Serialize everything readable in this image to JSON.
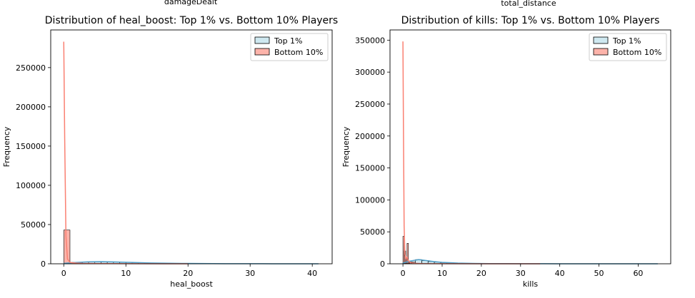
{
  "top_labels": [
    "damageDealt",
    "total_distance"
  ],
  "chart_data": [
    {
      "type": "histogram",
      "title": "Distribution of heal_boost: Top 1% vs. Bottom 10% Players",
      "xlabel": "heal_boost",
      "ylabel": "Frequency",
      "xlim": [
        -2.1,
        43.2
      ],
      "ylim": [
        0,
        298000
      ],
      "xticks": [
        0,
        10,
        20,
        30,
        40
      ],
      "yticks": [
        0,
        50000,
        100000,
        150000,
        200000,
        250000
      ],
      "grid": false,
      "legend_placement": "top-right",
      "legend": [
        "Top 1%",
        "Bottom 10%"
      ],
      "series": [
        {
          "name": "Top 1%",
          "color": "#add8e6",
          "line_color": "#4f9fc9",
          "bin_edges": [
            0,
            1,
            2,
            3,
            4,
            5,
            6,
            7,
            8,
            9,
            10,
            11,
            12,
            13,
            14,
            15,
            16,
            17,
            18,
            19,
            20,
            21,
            22,
            23,
            24,
            25,
            26,
            27,
            28,
            29,
            30,
            31,
            32,
            33,
            34,
            35,
            36,
            37,
            38,
            39,
            40,
            41
          ],
          "counts": [
            700,
            1200,
            1900,
            2300,
            2500,
            2600,
            2500,
            2300,
            2100,
            1900,
            1700,
            1500,
            1300,
            1100,
            950,
            800,
            700,
            600,
            500,
            420,
            360,
            300,
            250,
            210,
            170,
            140,
            120,
            100,
            80,
            70,
            60,
            50,
            40,
            35,
            30,
            25,
            20,
            15,
            12,
            10,
            8
          ],
          "kde_x": [
            0,
            2,
            4,
            6,
            8,
            10,
            12,
            14,
            16,
            18,
            20,
            22,
            24,
            26,
            28,
            30,
            32,
            34,
            36,
            38,
            40,
            41
          ],
          "kde_y": [
            600,
            1700,
            2500,
            2700,
            2400,
            1900,
            1450,
            1050,
            780,
            560,
            400,
            290,
            210,
            150,
            110,
            80,
            60,
            45,
            30,
            20,
            12,
            8
          ]
        },
        {
          "name": "Bottom 10%",
          "color": "#fa8072",
          "line_color": "#fa8072",
          "bin_edges": [
            0,
            1,
            2,
            3,
            4,
            5,
            6,
            7,
            8,
            9,
            10,
            11,
            12,
            13,
            14,
            15,
            16,
            17,
            18,
            19,
            20
          ],
          "counts": [
            43000,
            1800,
            900,
            600,
            450,
            350,
            280,
            220,
            180,
            150,
            120,
            100,
            80,
            70,
            60,
            50,
            40,
            30,
            20,
            15
          ],
          "kde_x": [
            0,
            0.15,
            0.35,
            0.6,
            1,
            1.5,
            2,
            3,
            5,
            8,
            12,
            16,
            20
          ],
          "kde_y": [
            283000,
            160000,
            35000,
            6000,
            1800,
            1200,
            900,
            600,
            350,
            200,
            100,
            50,
            20
          ]
        }
      ]
    },
    {
      "type": "histogram",
      "title": "Distribution of kills: Top 1% vs. Bottom 10% Players",
      "xlabel": "kills",
      "ylabel": "Frequency",
      "xlim": [
        -3.3,
        68.3
      ],
      "ylim": [
        0,
        366000
      ],
      "xticks": [
        0,
        10,
        20,
        30,
        40,
        50,
        60
      ],
      "yticks": [
        0,
        50000,
        100000,
        150000,
        200000,
        250000,
        300000,
        350000
      ],
      "grid": false,
      "legend_placement": "top-right",
      "legend": [
        "Top 1%",
        "Bottom 10%"
      ],
      "series": [
        {
          "name": "Top 1%",
          "color": "#add8e6",
          "line_color": "#4f9fc9",
          "bin_edges": [
            0,
            1.6,
            3.2,
            4.8,
            6.4,
            8,
            9.6,
            11.2,
            12.8,
            14.4,
            16,
            17.6,
            19.2,
            20.8,
            22.4,
            24,
            25.6,
            27.2,
            28.8,
            30.4,
            32,
            33.6,
            35.2,
            36.8,
            38.4,
            40,
            41.6,
            43.2,
            44.8,
            46.4,
            48,
            49.6,
            51.2,
            52.8,
            54.4,
            56,
            57.6,
            59.2,
            60.8,
            62.4,
            64,
            65
          ],
          "counts": [
            900,
            3000,
            6500,
            5000,
            3500,
            2500,
            1800,
            1300,
            950,
            700,
            520,
            400,
            300,
            230,
            180,
            140,
            110,
            90,
            70,
            60,
            50,
            40,
            35,
            30,
            25,
            22,
            20,
            18,
            16,
            14,
            12,
            11,
            10,
            9,
            8,
            7,
            6,
            5,
            4,
            3,
            2
          ],
          "kde_x": [
            0,
            2,
            4,
            6,
            8,
            10,
            14,
            18,
            22,
            26,
            30,
            35,
            40,
            45,
            50,
            55,
            60,
            65
          ],
          "kde_y": [
            1200,
            4500,
            6500,
            5000,
            3300,
            2200,
            1100,
            600,
            350,
            220,
            150,
            100,
            70,
            50,
            35,
            25,
            15,
            8
          ]
        },
        {
          "name": "Bottom 10%",
          "color": "#fa8072",
          "line_color": "#fa8072",
          "bin_edges": [
            0,
            0.35,
            0.7,
            1.05,
            1.4,
            1.75,
            2.1,
            2.45,
            2.8,
            3.15,
            3.5,
            5,
            7,
            10,
            15,
            20,
            25,
            30,
            35
          ],
          "counts": [
            43000,
            20000,
            8000,
            32000,
            4000,
            3000,
            2000,
            1500,
            1000,
            800,
            600,
            400,
            250,
            150,
            90,
            60,
            40,
            25
          ],
          "kde_x": [
            0,
            0.12,
            0.3,
            0.5,
            0.8,
            1,
            1.3,
            1.7,
            2.2,
            3,
            5,
            10,
            20,
            35
          ],
          "kde_y": [
            348000,
            220000,
            60000,
            15000,
            8000,
            10000,
            6000,
            3000,
            1500,
            800,
            300,
            100,
            40,
            10
          ]
        }
      ]
    }
  ]
}
